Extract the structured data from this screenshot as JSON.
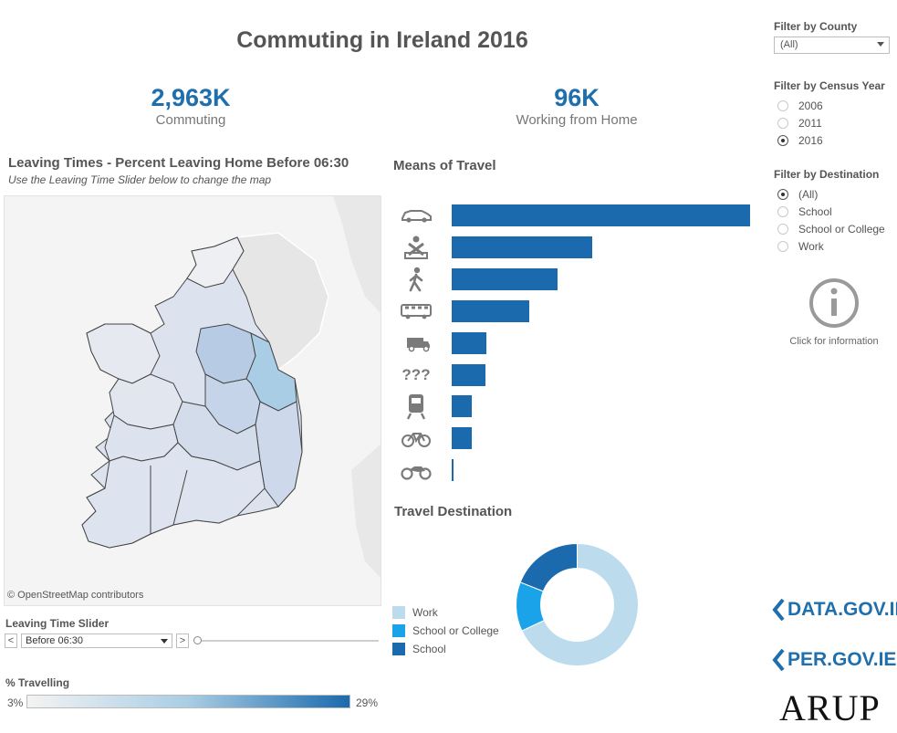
{
  "title": "Commuting in Ireland 2016",
  "kpis": [
    {
      "value": "2,963K",
      "label": "Commuting"
    },
    {
      "value": "96K",
      "label": "Working from Home"
    }
  ],
  "leaving_times": {
    "title": "Leaving Times - Percent Leaving Home Before 06:30",
    "subtitle": "Use the Leaving Time Slider below to change the map",
    "map_credit": "© OpenStreetMap contributors"
  },
  "slider": {
    "label": "Leaving Time Slider",
    "value": "Before 06:30",
    "prev": "<",
    "next": ">",
    "position": 0
  },
  "pct_legend": {
    "label": "% Travelling",
    "min": "3%",
    "max": "29%",
    "color_low": "#f3f3f3",
    "color_high": "#1a6aad"
  },
  "means_of_travel": {
    "title": "Means of Travel",
    "bar_color": "#1a6aad",
    "max_value": 100,
    "items": [
      {
        "icon": "car-icon",
        "value": 100
      },
      {
        "icon": "car-passenger-icon",
        "value": 47
      },
      {
        "icon": "walking-icon",
        "value": 35.5
      },
      {
        "icon": "bus-icon",
        "value": 26
      },
      {
        "icon": "van-icon",
        "value": 11.5
      },
      {
        "icon": "not-stated-icon",
        "value": 11.2,
        "glyph": "???"
      },
      {
        "icon": "train-icon",
        "value": 6.8
      },
      {
        "icon": "bicycle-icon",
        "value": 6.8
      },
      {
        "icon": "motorcycle-icon",
        "value": 0.6
      }
    ]
  },
  "travel_destination": {
    "title": "Travel Destination",
    "legend": [
      {
        "label": "Work",
        "color": "#bcdcee",
        "value": 68
      },
      {
        "label": "School or College",
        "color": "#1aa3e8",
        "value": 13
      },
      {
        "label": "School",
        "color": "#1a6aad",
        "value": 19
      }
    ]
  },
  "filters": {
    "county": {
      "title": "Filter by County",
      "value": "(All)"
    },
    "census_year": {
      "title": "Filter by Census Year",
      "options": [
        {
          "label": "2006",
          "selected": false
        },
        {
          "label": "2011",
          "selected": false
        },
        {
          "label": "2016",
          "selected": true
        }
      ]
    },
    "destination": {
      "title": "Filter by Destination",
      "options": [
        {
          "label": "(All)",
          "selected": true
        },
        {
          "label": "School",
          "selected": false
        },
        {
          "label": "School or College",
          "selected": false
        },
        {
          "label": "Work",
          "selected": false
        }
      ]
    }
  },
  "info": {
    "icon": "info-icon",
    "label": "Click for information"
  },
  "logos": {
    "data_gov": "DATA.GOV.IE",
    "per_gov": "PER.GOV.IE",
    "arup": "ARUP",
    "color": "#1f6fad"
  }
}
